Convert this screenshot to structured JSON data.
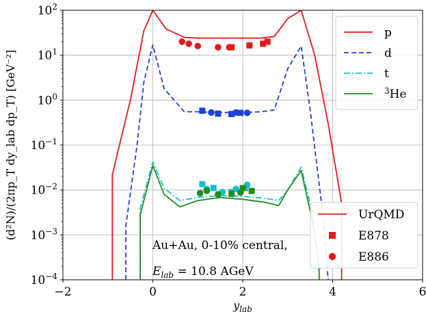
{
  "chart_data": {
    "type": "line",
    "xlim": [
      -2,
      6
    ],
    "ylim": [
      0.0001,
      100
    ],
    "yscale": "log",
    "grid": true,
    "xlabel": "y_lab",
    "ylabel": "(d²N)/(2πp_T dy_lab dp_T) [GeV⁻²]",
    "x_ticks": [
      -2,
      0,
      2,
      4,
      6
    ],
    "y_ticks": [
      {
        "value": 0.0001,
        "base": "10",
        "exp": "−4"
      },
      {
        "value": 0.001,
        "base": "10",
        "exp": "−3"
      },
      {
        "value": 0.01,
        "base": "10",
        "exp": "−2"
      },
      {
        "value": 0.1,
        "base": "10",
        "exp": "−1"
      },
      {
        "value": 1,
        "base": "10",
        "exp": "0"
      },
      {
        "value": 10,
        "base": "10",
        "exp": "1"
      },
      {
        "value": 100,
        "base": "10",
        "exp": "2"
      }
    ],
    "annotations": [
      "Au+Au, 0-10% central,",
      "E_lab = 10.8 AGeV"
    ],
    "series": [
      {
        "name": "p",
        "color": "#e31a1c",
        "dash": "solid",
        "line": {
          "x": [
            -0.9,
            -0.9,
            -0.5,
            -0.2,
            0,
            0.3,
            0.7,
            1.0,
            1.5,
            2.0,
            2.4,
            2.7,
            3.0,
            3.3,
            3.6,
            3.9,
            4.2,
            4.2
          ],
          "y": [
            0.0001,
            0.022,
            1.0,
            35,
            100,
            38,
            25,
            24,
            24,
            24,
            24,
            26,
            65,
            100,
            10,
            0.3,
            0.005,
            0.0001
          ]
        },
        "e878": {
          "x": [
            1.75,
            2.15,
            2.45,
            2.55
          ],
          "y": [
            15,
            16.5,
            18,
            20
          ]
        },
        "e886": {
          "x": [
            0.65,
            0.8,
            1.0,
            1.45,
            1.7
          ],
          "y": [
            20,
            18,
            16,
            15,
            15
          ]
        }
      },
      {
        "name": "d",
        "color": "#1f3fd6",
        "dash": "7,4",
        "line": {
          "x": [
            -0.6,
            -0.6,
            -0.35,
            -0.2,
            0,
            0.25,
            0.7,
            1.0,
            1.5,
            2.0,
            2.4,
            2.7,
            3.0,
            3.3,
            3.5,
            3.8,
            3.9
          ],
          "y": [
            0.0001,
            0.0016,
            0.1,
            2.5,
            17,
            1.8,
            0.55,
            0.55,
            0.53,
            0.53,
            0.55,
            0.6,
            5,
            16,
            0.6,
            0.002,
            0.0001
          ]
        },
        "e878": {
          "x": [
            1.1,
            1.45,
            1.75,
            1.95
          ],
          "y": [
            0.58,
            0.5,
            0.49,
            0.52
          ]
        },
        "e886": {
          "x": [
            1.3,
            1.85,
            2.1
          ],
          "y": [
            0.53,
            0.53,
            0.52
          ]
        }
      },
      {
        "name": "t",
        "color": "#17becf",
        "dash": "9,3,2,3",
        "line": {
          "x": [
            -0.28,
            -0.28,
            0,
            0.25,
            0.6,
            1.0,
            1.5,
            2.0,
            2.5,
            2.8,
            3.0,
            3.3,
            3.55,
            3.7,
            3.7
          ],
          "y": [
            0.0001,
            0.004,
            0.042,
            0.011,
            0.0058,
            0.0068,
            0.0075,
            0.0072,
            0.0065,
            0.0058,
            0.01,
            0.032,
            0.003,
            0.0002,
            0.0001
          ]
        },
        "e878": {
          "x": [
            1.1,
            1.35,
            1.75,
            2.05
          ],
          "y": [
            0.0135,
            0.011,
            0.009,
            0.011
          ]
        },
        "e886": {
          "x": [
            1.2,
            1.55,
            1.85,
            2.1
          ],
          "y": [
            0.0105,
            0.009,
            0.0105,
            0.013
          ]
        }
      },
      {
        "name": "³He",
        "color": "#1e8c1e",
        "dash": "solid",
        "line": {
          "x": [
            -0.28,
            -0.28,
            0,
            0.25,
            0.6,
            1.0,
            1.5,
            2.0,
            2.5,
            2.8,
            3.0,
            3.3,
            3.55,
            3.7,
            3.7
          ],
          "y": [
            0.0001,
            0.0028,
            0.035,
            0.008,
            0.0042,
            0.0058,
            0.0068,
            0.0062,
            0.0053,
            0.0045,
            0.01,
            0.027,
            0.002,
            0.00015,
            0.0001
          ]
        },
        "e878": {
          "x": [
            1.75,
            2.0,
            2.2
          ],
          "y": [
            0.0082,
            0.011,
            0.0095
          ]
        },
        "e886": {
          "x": [
            1.05,
            1.2,
            1.45,
            1.95
          ],
          "y": [
            0.0085,
            0.0095,
            0.008,
            0.0088
          ]
        }
      }
    ],
    "legend_series": {
      "placement": "top-right",
      "entries": [
        {
          "label": "p",
          "color": "#e31a1c",
          "dash": "solid"
        },
        {
          "label": "d",
          "color": "#1f3fd6",
          "dash": "7,4"
        },
        {
          "label": "t",
          "color": "#17becf",
          "dash": "9,3,2,3"
        },
        {
          "label": "³He",
          "color": "#1e8c1e",
          "dash": "solid"
        }
      ]
    },
    "legend_model": {
      "placement": "bottom-right",
      "entries": [
        {
          "label": "UrQMD",
          "kind": "line"
        },
        {
          "label": "E878",
          "kind": "square"
        },
        {
          "label": "E886",
          "kind": "circle"
        }
      ]
    }
  }
}
